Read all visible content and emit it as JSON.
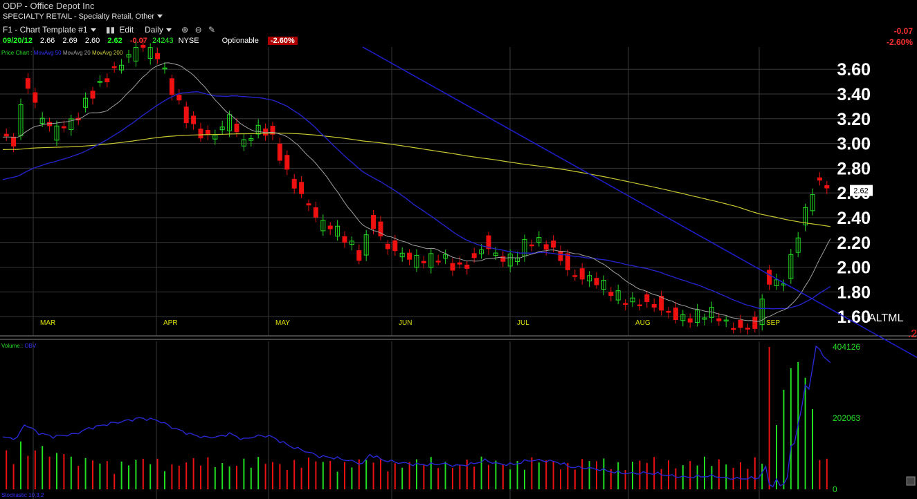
{
  "header": {
    "symbol": "ODP - Office Depot Inc",
    "sector": "SPECIALTY RETAIL - Specialty Retail, Other",
    "template": "F1 - Chart Template #1",
    "edit_label": "Edit",
    "period_label": "Daily",
    "quote": {
      "date": "09/20/12",
      "open": "2.66",
      "high": "2.69",
      "low": "2.60",
      "last": "2.62",
      "change": "-0.07",
      "volume": "24243",
      "exchange": "NYSE",
      "optionable": "Optionable",
      "pct": "-2.60%"
    },
    "right_change": "-0.07",
    "right_pct": "-2.60%"
  },
  "legend": {
    "price_chart": "Price Chart",
    "mavg50": "MovAvg 50",
    "mavg20": "MovAvg 20",
    "mavg200": "MovAvg 200",
    "volume": "Volume",
    "obv": "OBV",
    "stochastic": "Stochastic 10,3,2"
  },
  "side_labels": {
    "altml": "ALTML",
    "two": ".2",
    "last_tag": "2.62"
  },
  "colors": {
    "up": "#22dd22",
    "down": "#ee1111",
    "ma50": "#2323c8",
    "ma20": "#a0a0a0",
    "ma200": "#c8c832",
    "trend": "#1e1ed2",
    "obv": "#2828d2",
    "grid": "#3a3a3a",
    "axis_text": "#ffffff",
    "month_text": "#e0e000",
    "vol_axis_text": "#22dd22"
  },
  "chart_data": [
    {
      "type": "candlestick",
      "title": "ODP - Office Depot Inc",
      "period": "Daily",
      "ylim": [
        1.45,
        3.78
      ],
      "y_ticks": [
        1.6,
        1.8,
        2.0,
        2.2,
        2.4,
        2.6,
        2.8,
        3.0,
        3.2,
        3.4,
        3.6
      ],
      "y_tick_labels": [
        "1.60",
        "1.80",
        "2.00",
        "2.20",
        "2.40",
        "2.60",
        "2.80",
        "3.00",
        "3.20",
        "3.40",
        "3.60"
      ],
      "months": [
        "MAR",
        "APR",
        "MAY",
        "JUN",
        "JUL",
        "AUG",
        "SEP"
      ],
      "anchors": [
        [
          0,
          3.05
        ],
        [
          4,
          3.03
        ],
        [
          6,
          3.55
        ],
        [
          10,
          3.22
        ],
        [
          14,
          3.09
        ],
        [
          20,
          3.18
        ],
        [
          24,
          3.4
        ],
        [
          30,
          3.58
        ],
        [
          34,
          3.67
        ],
        [
          38,
          3.78
        ],
        [
          43,
          3.7
        ],
        [
          48,
          3.38
        ],
        [
          52,
          3.18
        ],
        [
          56,
          3.06
        ],
        [
          60,
          3.08
        ],
        [
          63,
          3.2
        ],
        [
          67,
          2.98
        ],
        [
          70,
          3.1
        ],
        [
          74,
          3.12
        ],
        [
          76,
          2.99
        ],
        [
          80,
          2.72
        ],
        [
          84,
          2.55
        ],
        [
          88,
          2.35
        ],
        [
          92,
          2.3
        ],
        [
          96,
          2.2
        ],
        [
          100,
          2.07
        ],
        [
          102,
          2.42
        ],
        [
          106,
          2.2
        ],
        [
          110,
          2.12
        ],
        [
          114,
          2.05
        ],
        [
          118,
          2.04
        ],
        [
          122,
          2.08
        ],
        [
          126,
          2.0
        ],
        [
          130,
          2.05
        ],
        [
          134,
          2.2
        ],
        [
          138,
          2.06
        ],
        [
          142,
          2.05
        ],
        [
          146,
          2.2
        ],
        [
          150,
          2.2
        ],
        [
          154,
          2.14
        ],
        [
          158,
          1.95
        ],
        [
          162,
          1.92
        ],
        [
          166,
          1.86
        ],
        [
          170,
          1.76
        ],
        [
          174,
          1.71
        ],
        [
          178,
          1.73
        ],
        [
          182,
          1.7
        ],
        [
          186,
          1.62
        ],
        [
          190,
          1.57
        ],
        [
          194,
          1.6
        ],
        [
          198,
          1.62
        ],
        [
          200,
          1.55
        ],
        [
          204,
          1.52
        ],
        [
          208,
          1.53
        ],
        [
          210,
          1.55
        ],
        [
          212,
          1.93
        ],
        [
          214,
          1.87
        ],
        [
          216,
          1.85
        ],
        [
          218,
          1.93
        ],
        [
          220,
          2.15
        ],
        [
          222,
          2.35
        ],
        [
          224,
          2.5
        ],
        [
          226,
          2.7
        ],
        [
          228,
          2.66
        ],
        [
          230,
          2.62
        ]
      ],
      "last_price": 2.62,
      "date_range": [
        "2012-02-16",
        "2012-09-20"
      ]
    },
    {
      "type": "bar",
      "title": "Volume",
      "series_name": "OBV",
      "y_ticks": [
        0,
        202063,
        404126
      ],
      "y_tick_labels": [
        "0",
        "202063",
        "404126"
      ],
      "max_volume": 404126
    }
  ]
}
